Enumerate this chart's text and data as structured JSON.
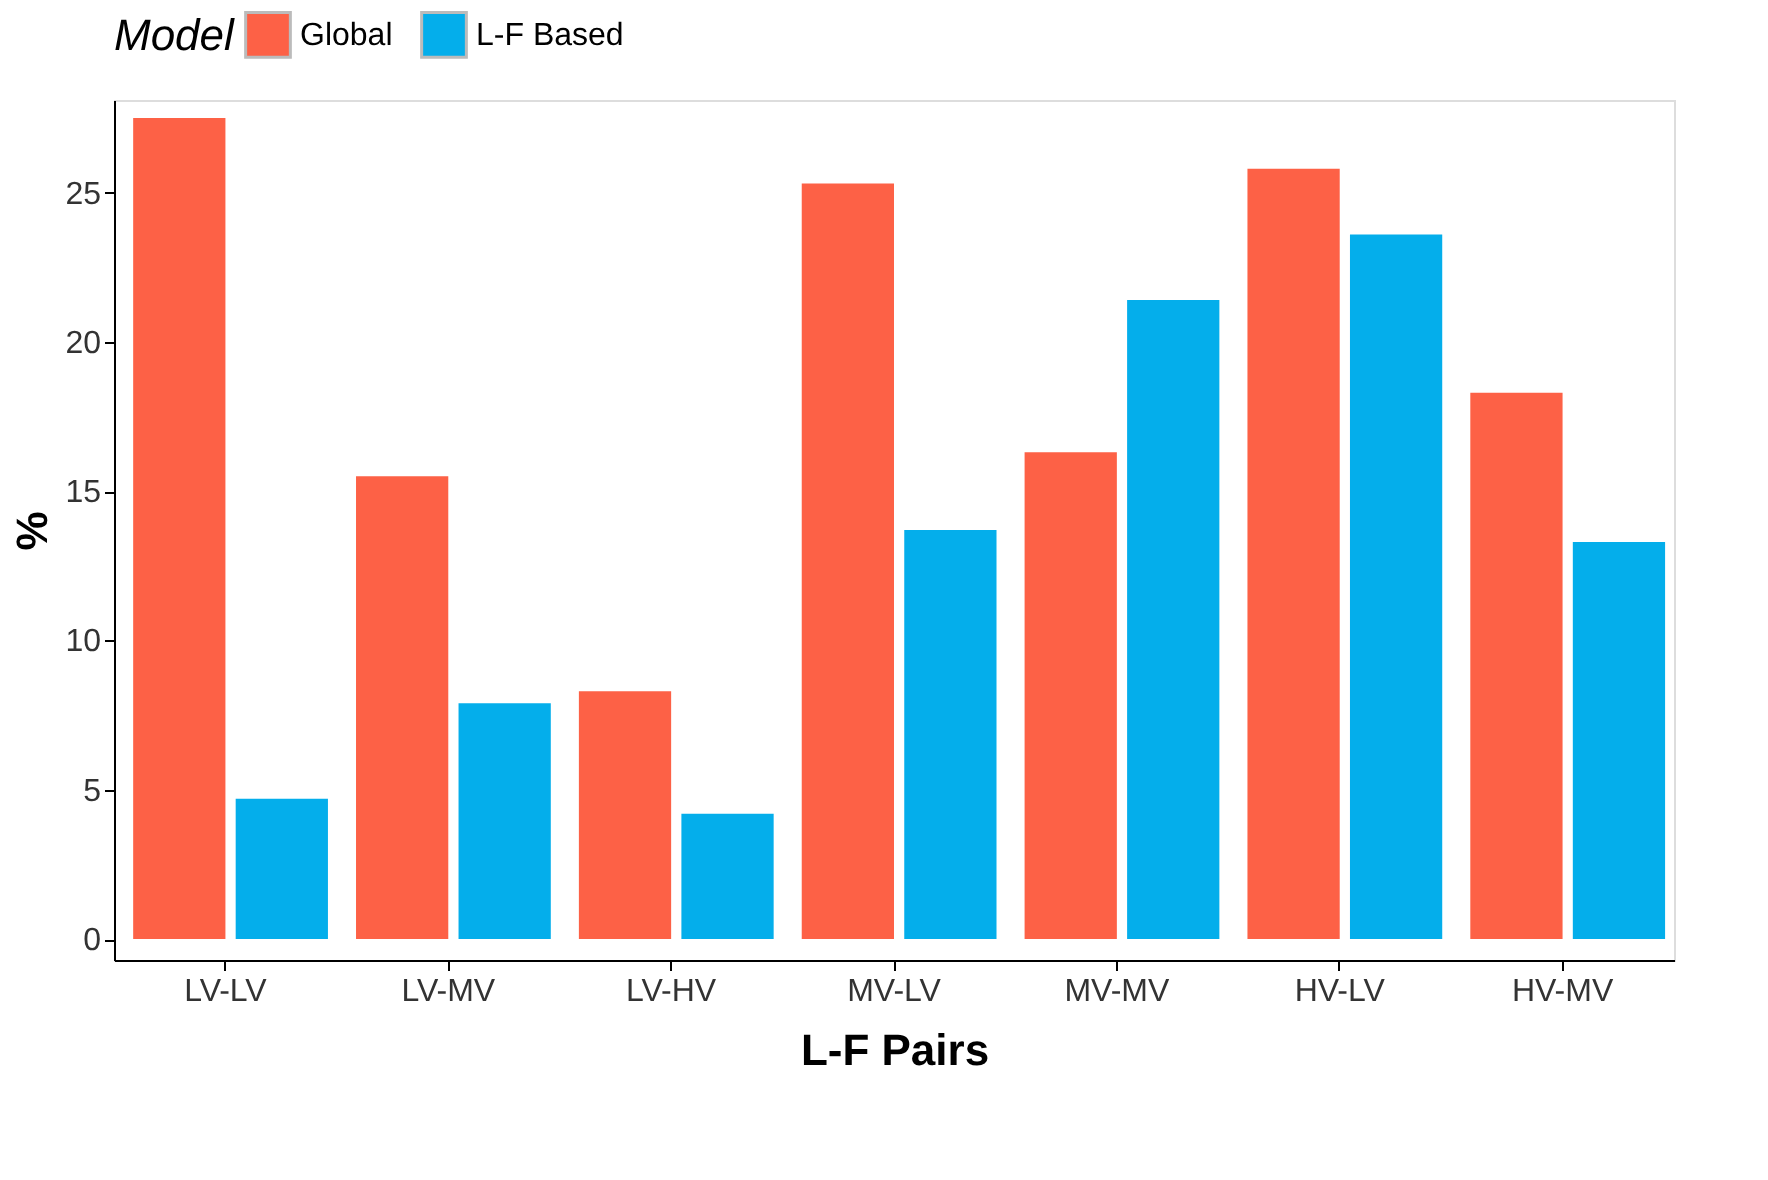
{
  "chart_data": {
    "type": "bar",
    "xlabel": "L-F Pairs",
    "ylabel": "%",
    "legend_title": "Model",
    "legend": "top",
    "categories": [
      "LV-LV",
      "LV-MV",
      "LV-HV",
      "MV-LV",
      "MV-MV",
      "HV-LV",
      "HV-MV"
    ],
    "series": [
      {
        "name": "Global",
        "color": "#fd6146",
        "values": [
          27.5,
          15.5,
          8.3,
          25.3,
          16.3,
          25.8,
          18.3
        ]
      },
      {
        "name": "L-F Based",
        "color": "#04aeeb",
        "values": [
          4.7,
          7.9,
          4.2,
          13.7,
          21.4,
          23.6,
          13.3
        ]
      }
    ],
    "ylim": [
      -0.7,
      28.1
    ],
    "yticks": [
      0,
      5,
      10,
      15,
      20,
      25
    ],
    "grid": false
  }
}
